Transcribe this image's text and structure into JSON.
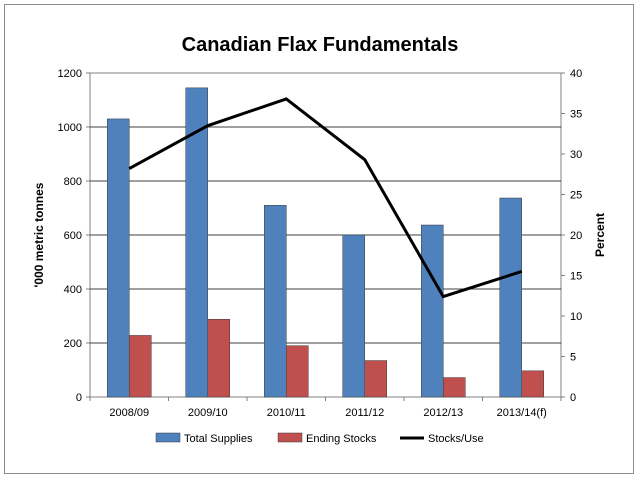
{
  "chart_data": {
    "type": "bar",
    "title": "Canadian Flax Fundamentals",
    "categories": [
      "2008/09",
      "2009/10",
      "2010/11",
      "2011/12",
      "2012/13",
      "2013/14(f)"
    ],
    "ylabel": "'000 metric tonnes",
    "y2label": "Percent",
    "ylim": [
      0,
      1200
    ],
    "yticks": [
      0,
      200,
      400,
      600,
      800,
      1000,
      1200
    ],
    "y2lim": [
      0,
      40
    ],
    "y2ticks": [
      0,
      5,
      10,
      15,
      20,
      25,
      30,
      35,
      40
    ],
    "grid": "horizontal",
    "legend_position": "bottom",
    "series": [
      {
        "name": "Total Supplies",
        "type": "bar",
        "axis": "left",
        "color": "#4f81bd",
        "values": [
          1030,
          1145,
          710,
          600,
          637,
          737
        ]
      },
      {
        "name": "Ending Stocks",
        "type": "bar",
        "axis": "left",
        "color": "#c0504d",
        "values": [
          228,
          288,
          190,
          135,
          72,
          97
        ]
      },
      {
        "name": "Stocks/Use",
        "type": "line",
        "axis": "right",
        "color": "#000000",
        "values": [
          28.2,
          33.5,
          36.8,
          29.3,
          12.4,
          15.5
        ]
      }
    ]
  }
}
